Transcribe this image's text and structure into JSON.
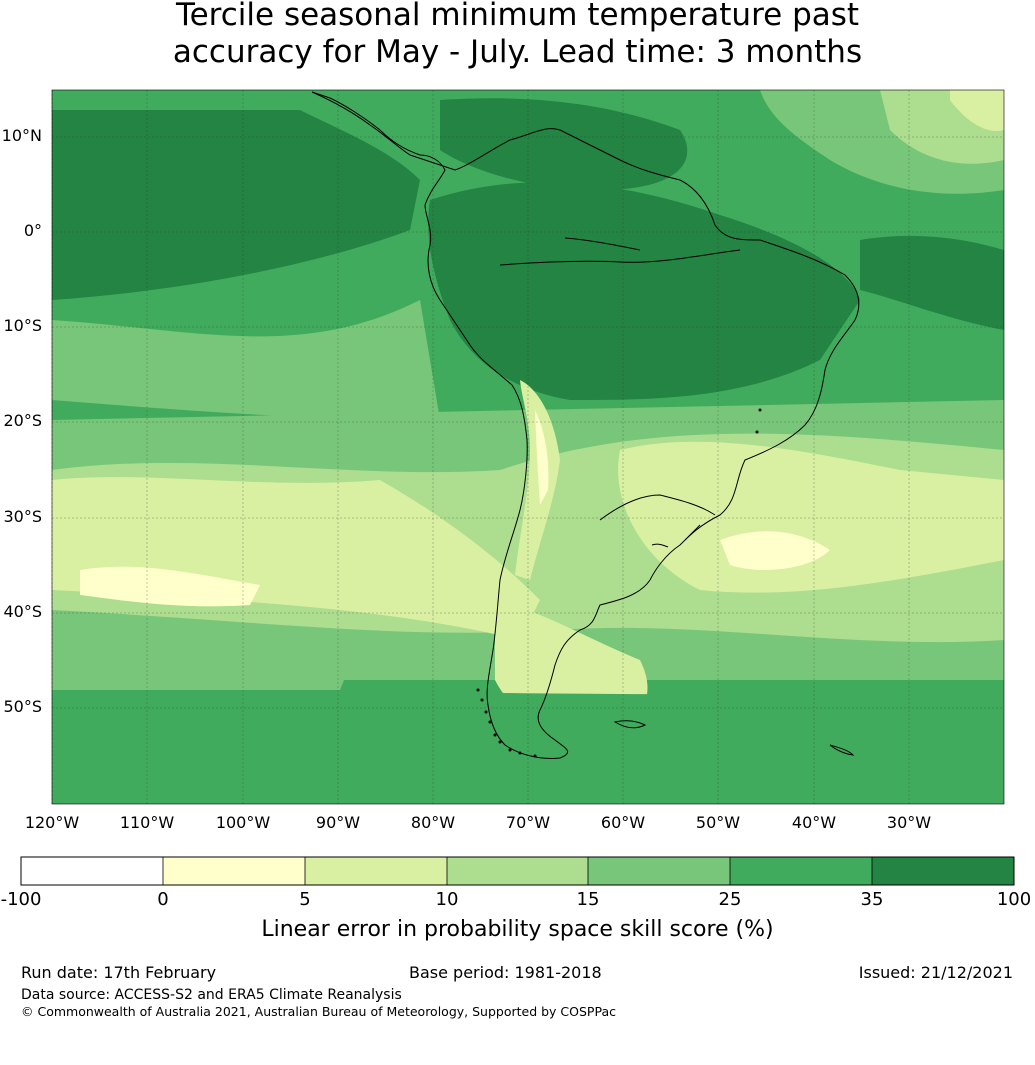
{
  "title_line1": "Tercile seasonal minimum temperature past",
  "title_line2": "accuracy for May - July. Lead time: 3 months",
  "map": {
    "lat_labels": [
      "10°N",
      "0°",
      "10°S",
      "20°S",
      "30°S",
      "40°S",
      "50°S"
    ],
    "lon_labels": [
      "120°W",
      "110°W",
      "100°W",
      "90°W",
      "80°W",
      "70°W",
      "60°W",
      "50°W",
      "40°W",
      "30°W"
    ],
    "extent": {
      "lon_min": -120,
      "lon_max": -20,
      "lat_min": -60,
      "lat_max": 15
    }
  },
  "colorbar": {
    "ticks": [
      "-100",
      "0",
      "5",
      "10",
      "15",
      "25",
      "35",
      "100"
    ],
    "colors": [
      "#ffffff",
      "#ffffcc",
      "#d9f0a3",
      "#addd8e",
      "#78c679",
      "#41ab5d",
      "#238443"
    ],
    "label": "Linear error in probability space skill score (%)"
  },
  "footer": {
    "run_date": "Run date: 17th February",
    "base_period": "Base period: 1981-2018",
    "issued": "Issued: 21/12/2021",
    "data_source": "Data source: ACCESS-S2 and ERA5 Climate Reanalysis",
    "copyright": "© Commonwealth of Australia 2021, Australian Bureau of Meteorology, Supported by COSPPac"
  }
}
